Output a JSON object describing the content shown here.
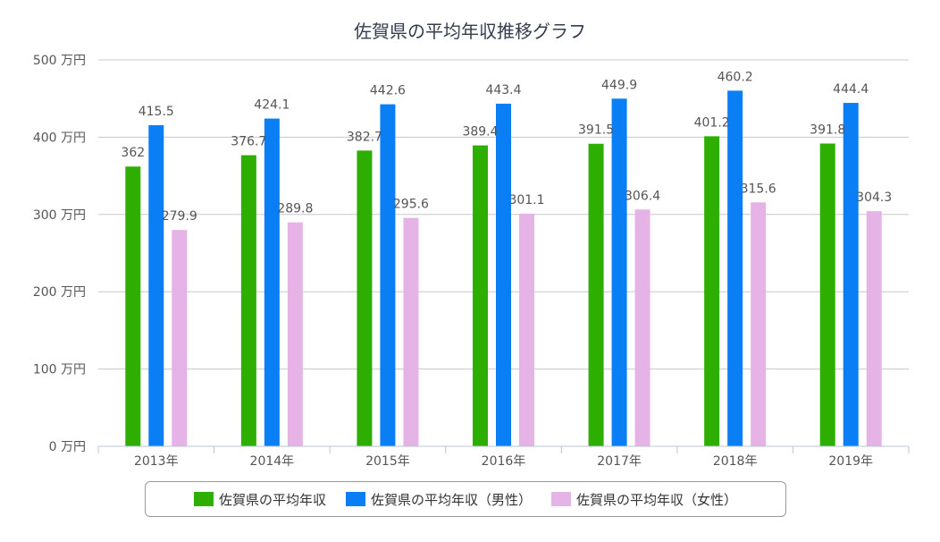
{
  "chart_data": {
    "type": "bar",
    "title": "佐賀県の平均年収推移グラフ",
    "categories": [
      "2013年",
      "2014年",
      "2015年",
      "2016年",
      "2017年",
      "2018年",
      "2019年"
    ],
    "series": [
      {
        "name": "佐賀県の平均年収",
        "color": "#2eaf00",
        "values": [
          362,
          376.7,
          382.7,
          389.4,
          391.5,
          401.2,
          391.8
        ],
        "labels": [
          "362",
          "376.7",
          "382.7",
          "389.4",
          "391.5",
          "401.2",
          "391.8"
        ]
      },
      {
        "name": "佐賀県の平均年収（男性）",
        "color": "#0a7ff5",
        "values": [
          415.5,
          424.1,
          442.6,
          443.4,
          449.9,
          460.2,
          444.4
        ],
        "labels": [
          "415.5",
          "424.1",
          "442.6",
          "443.4",
          "449.9",
          "460.2",
          "444.4"
        ]
      },
      {
        "name": "佐賀県の平均年収（女性）",
        "color": "#e6b3e6",
        "values": [
          279.9,
          289.8,
          295.6,
          301.1,
          306.4,
          315.6,
          304.3
        ],
        "labels": [
          "279.9",
          "289.8",
          "295.6",
          "301.1",
          "306.4",
          "315.6",
          "304.3"
        ]
      }
    ],
    "y_ticks": [
      {
        "value": 0,
        "label": "0 万円"
      },
      {
        "value": 100,
        "label": "100 万円"
      },
      {
        "value": 200,
        "label": "200 万円"
      },
      {
        "value": 300,
        "label": "300 万円"
      },
      {
        "value": 400,
        "label": "400 万円"
      },
      {
        "value": 500,
        "label": "500 万円"
      }
    ],
    "ylim": [
      0,
      500
    ],
    "grid": true,
    "legend_position": "bottom"
  }
}
